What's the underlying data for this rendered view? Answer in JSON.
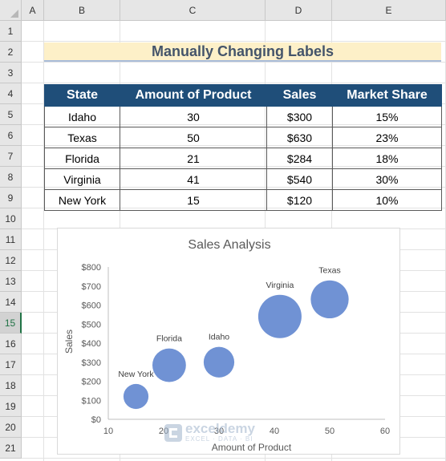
{
  "columns": [
    "A",
    "B",
    "C",
    "D",
    "E"
  ],
  "rows": [
    "1",
    "2",
    "3",
    "4",
    "5",
    "6",
    "7",
    "8",
    "9",
    "10",
    "11",
    "12",
    "13",
    "14",
    "15",
    "16",
    "17",
    "18",
    "19",
    "20",
    "21"
  ],
  "selected_row": "15",
  "sheet_title": "Manually Changing Labels",
  "table": {
    "headers": [
      "State",
      "Amount of Product",
      "Sales",
      "Market Share"
    ],
    "rows": [
      [
        "Idaho",
        "30",
        "$300",
        "15%"
      ],
      [
        "Texas",
        "50",
        "$630",
        "23%"
      ],
      [
        "Florida",
        "21",
        "$284",
        "18%"
      ],
      [
        "Virginia",
        "41",
        "$540",
        "30%"
      ],
      [
        "New York",
        "15",
        "$120",
        "10%"
      ]
    ]
  },
  "chart_data": {
    "type": "bubble",
    "title": "Sales Analysis",
    "xlabel": "Amount of Product",
    "ylabel": "Sales",
    "xlim": [
      10,
      60
    ],
    "ylim": [
      0,
      800
    ],
    "x_ticks": [
      "10",
      "20",
      "30",
      "40",
      "50",
      "60"
    ],
    "y_ticks": [
      "$0",
      "$100",
      "$200",
      "$300",
      "$400",
      "$500",
      "$600",
      "$700",
      "$800"
    ],
    "bubble_color": "#7092d4",
    "points": [
      {
        "label": "Idaho",
        "x": 30,
        "y": 300,
        "size": 15
      },
      {
        "label": "Texas",
        "x": 50,
        "y": 630,
        "size": 23
      },
      {
        "label": "Florida",
        "x": 21,
        "y": 284,
        "size": 18
      },
      {
        "label": "Virginia",
        "x": 41,
        "y": 540,
        "size": 30
      },
      {
        "label": "New York",
        "x": 15,
        "y": 120,
        "size": 10
      }
    ]
  },
  "watermark": {
    "name": "exceldemy",
    "tagline": "EXCEL · DATA · BI"
  }
}
